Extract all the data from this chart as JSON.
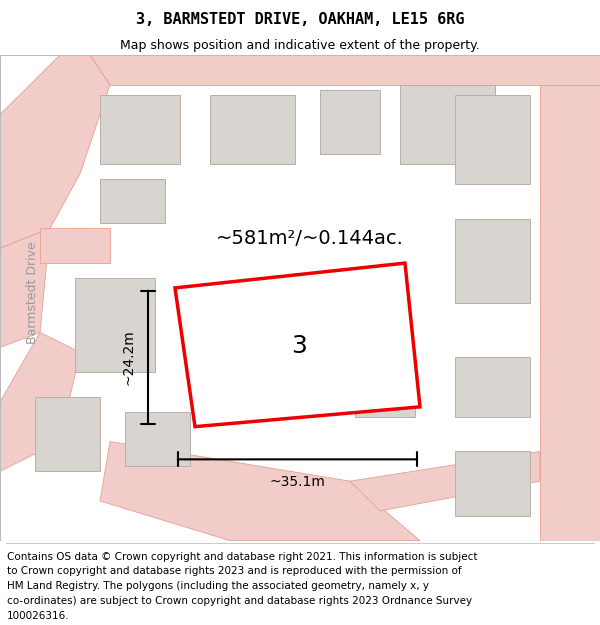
{
  "title": "3, BARMSTEDT DRIVE, OAKHAM, LE15 6RG",
  "subtitle": "Map shows position and indicative extent of the property.",
  "footer_lines": [
    "Contains OS data © Crown copyright and database right 2021. This information is subject",
    "to Crown copyright and database rights 2023 and is reproduced with the permission of",
    "HM Land Registry. The polygons (including the associated geometry, namely x, y",
    "co-ordinates) are subject to Crown copyright and database rights 2023 Ordnance Survey",
    "100026316."
  ],
  "map_bg": "#f7f4f2",
  "road_color": "#f2ccc8",
  "road_outline": "#e8a090",
  "building_fill": "#d8d4d0",
  "building_outline": "#b8b0a8",
  "highlight_color": "#ee0000",
  "property_label": "3",
  "area_label": "~581m²/~0.144ac.",
  "width_label": "~35.1m",
  "height_label": "~24.2m",
  "road_label": "Barmstedt Drive",
  "title_fontsize": 11,
  "subtitle_fontsize": 9,
  "footer_fontsize": 7.5,
  "label_fontsize": 18,
  "area_fontsize": 14,
  "dim_fontsize": 10,
  "road_label_fontsize": 9
}
